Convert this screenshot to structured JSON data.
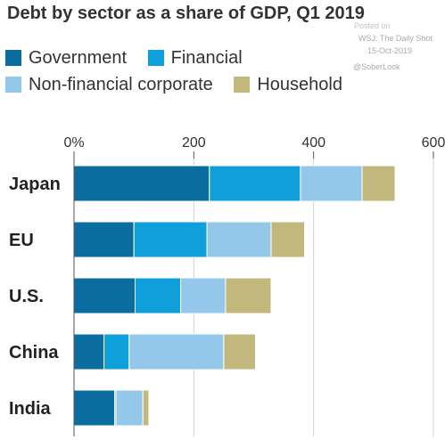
{
  "chart_data": {
    "type": "bar",
    "orientation": "horizontal",
    "stacked": true,
    "title": "Debt by sector as a share of GDP, Q1 2019",
    "categories": [
      "Japan",
      "EU",
      "U.S.",
      "China",
      "India"
    ],
    "series": [
      {
        "name": "Government",
        "color": "#0a6c9f",
        "values": [
          226,
          100,
          102,
          50,
          68
        ]
      },
      {
        "name": "Financial",
        "color": "#0fa0dc",
        "values": [
          152,
          122,
          76,
          42,
          2
        ]
      },
      {
        "name": "Non-financial corporate",
        "color": "#93c8ea",
        "values": [
          103,
          107,
          75,
          158,
          45
        ]
      },
      {
        "name": "Household",
        "color": "#c2b87d",
        "values": [
          55,
          56,
          76,
          53,
          10
        ]
      }
    ],
    "xlim": [
      0,
      600
    ],
    "xticks": [
      "0%",
      "200",
      "400",
      "600"
    ],
    "xtick_values": [
      0,
      200,
      400,
      600
    ],
    "grid": true,
    "legend": "top"
  },
  "watermark": {
    "line1": "Posted on",
    "line2": "WSJ: The Daily Shot",
    "line3": "15-Oct-2019",
    "line4": "@SoberLook"
  }
}
